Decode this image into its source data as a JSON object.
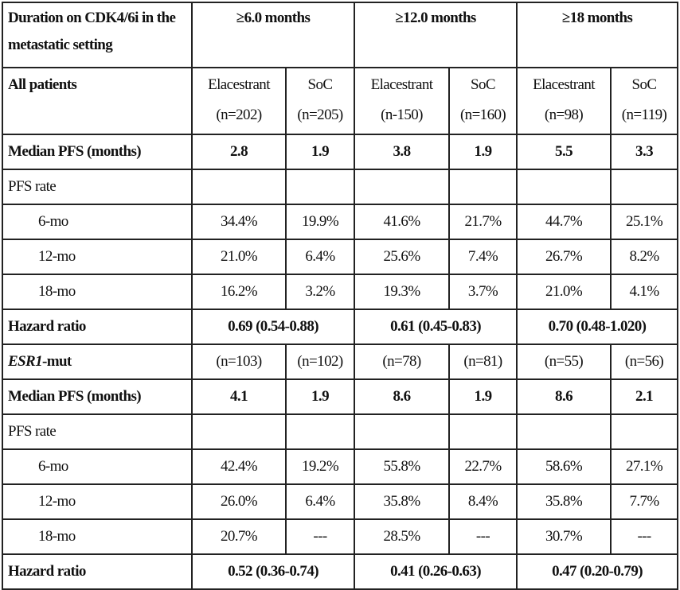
{
  "header": {
    "corner": "Duration on CDK4/6i in the metastatic setting",
    "groups": [
      "≥6.0 months",
      "≥12.0 months",
      "≥18 months"
    ]
  },
  "all_patients": {
    "label": "All patients",
    "arms": [
      {
        "name": "Elacestrant",
        "n": "(n=202)"
      },
      {
        "name": "SoC",
        "n": "(n=205)"
      },
      {
        "name": "Elacestrant",
        "n": "(n-150)"
      },
      {
        "name": "SoC",
        "n": "(n=160)"
      },
      {
        "name": "Elacestrant",
        "n": "(n=98)"
      },
      {
        "name": "SoC",
        "n": "(n=119)"
      }
    ],
    "median_pfs": {
      "label": "Median PFS (months)",
      "values": [
        "2.8",
        "1.9",
        "3.8",
        "1.9",
        "5.5",
        "3.3"
      ]
    },
    "pfs_rate_label": "PFS rate",
    "rates": [
      {
        "label": "6-mo",
        "values": [
          "34.4%",
          "19.9%",
          "41.6%",
          "21.7%",
          "44.7%",
          "25.1%"
        ]
      },
      {
        "label": "12-mo",
        "values": [
          "21.0%",
          "6.4%",
          "25.6%",
          "7.4%",
          "26.7%",
          "8.2%"
        ]
      },
      {
        "label": "18-mo",
        "values": [
          "16.2%",
          "3.2%",
          "19.3%",
          "3.7%",
          "21.0%",
          "4.1%"
        ]
      }
    ],
    "hazard_ratio": {
      "label": "Hazard ratio",
      "values": [
        "0.69 (0.54-0.88)",
        "0.61 (0.45-0.83)",
        "0.70 (0.48-1.020)"
      ]
    }
  },
  "esr1": {
    "label_italic": "ESR1",
    "label_suffix": "-mut",
    "n": [
      "(n=103)",
      "(n=102)",
      "(n=78)",
      "(n=81)",
      "(n=55)",
      "(n=56)"
    ],
    "median_pfs": {
      "label": "Median PFS (months)",
      "values": [
        "4.1",
        "1.9",
        "8.6",
        "1.9",
        "8.6",
        "2.1"
      ]
    },
    "pfs_rate_label": "PFS rate",
    "rates": [
      {
        "label": "6-mo",
        "values": [
          "42.4%",
          "19.2%",
          "55.8%",
          "22.7%",
          "58.6%",
          "27.1%"
        ]
      },
      {
        "label": "12-mo",
        "values": [
          "26.0%",
          "6.4%",
          "35.8%",
          "8.4%",
          "35.8%",
          "7.7%"
        ]
      },
      {
        "label": "18-mo",
        "values": [
          "20.7%",
          "---",
          "28.5%",
          "---",
          "30.7%",
          "---"
        ]
      }
    ],
    "hazard_ratio": {
      "label": "Hazard ratio",
      "values": [
        "0.52 (0.36-0.74)",
        "0.41 (0.26-0.63)",
        "0.47 (0.20-0.79)"
      ]
    }
  }
}
